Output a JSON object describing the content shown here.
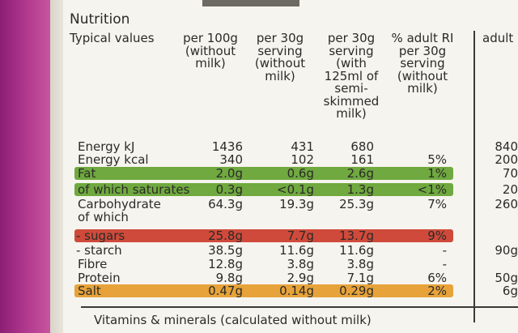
{
  "title": "Nutrition",
  "headers": {
    "typical": "Typical values",
    "c1": [
      "per 100g",
      "(without",
      "milk)"
    ],
    "c2": [
      "per 30g",
      "serving",
      "(without",
      "milk)"
    ],
    "c3": [
      "per 30g",
      "serving",
      "(with",
      "125ml of",
      "semi-",
      "skimmed",
      "milk)"
    ],
    "c4": [
      "% adult RI",
      "per 30g",
      "serving",
      "(without",
      "milk)"
    ],
    "c5": "adult"
  },
  "rows": [
    {
      "label": "Energy kJ",
      "v1": "1436",
      "v2": "431",
      "v3": "680",
      "v4": "",
      "v5": "840",
      "band": ""
    },
    {
      "label": "Energy kcal",
      "v1": "340",
      "v2": "102",
      "v3": "161",
      "v4": "5%",
      "v5": "200",
      "band": ""
    },
    {
      "label": "Fat",
      "v1": "2.0g",
      "v2": "0.6g",
      "v3": "2.6g",
      "v4": "1%",
      "v5": "70",
      "band": "green"
    },
    {
      "label": "of which saturates",
      "v1": "0.3g",
      "v2": "<0.1g",
      "v3": "1.3g",
      "v4": "<1%",
      "v5": "20",
      "band": "green"
    },
    {
      "label": "Carbohydrate",
      "v1": "64.3g",
      "v2": "19.3g",
      "v3": "25.3g",
      "v4": "7%",
      "v5": "260",
      "band": ""
    },
    {
      "label": "of which",
      "v1": "",
      "v2": "",
      "v3": "",
      "v4": "",
      "v5": "",
      "band": ""
    },
    {
      "label": "- sugars",
      "v1": "25.8g",
      "v2": "7.7g",
      "v3": "13.7g",
      "v4": "9%",
      "v5": "",
      "band": "red"
    },
    {
      "label": "- starch",
      "v1": "38.5g",
      "v2": "11.6g",
      "v3": "11.6g",
      "v4": "-",
      "v5": "90g",
      "band": ""
    },
    {
      "label": "Fibre",
      "v1": "12.8g",
      "v2": "3.8g",
      "v3": "3.8g",
      "v4": "-",
      "v5": "",
      "band": ""
    },
    {
      "label": "Protein",
      "v1": "9.8g",
      "v2": "2.9g",
      "v3": "7.1g",
      "v4": "6%",
      "v5": "50g",
      "band": ""
    },
    {
      "label": "Salt",
      "v1": "0.47g",
      "v2": "0.14g",
      "v3": "0.29g",
      "v4": "2%",
      "v5": "6g",
      "band": "amber"
    }
  ],
  "footer": "Vitamins & minerals (calculated without milk)"
}
